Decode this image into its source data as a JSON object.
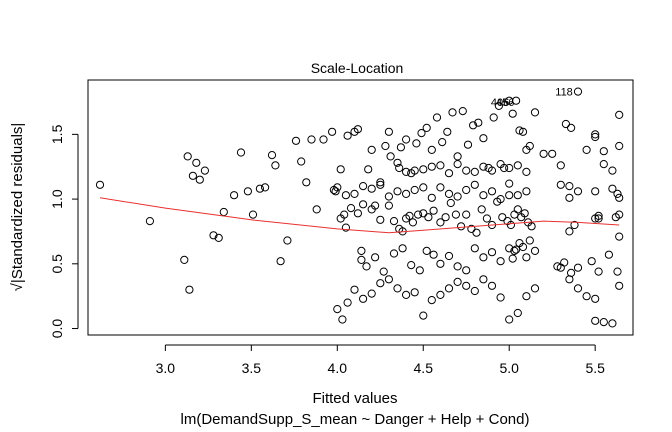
{
  "chart_data": {
    "type": "scatter",
    "title": "Scale-Location",
    "xlabel": "Fitted values",
    "sublabel": "lm(DemandSupp_S_mean ~ Danger + Help + Cond)",
    "ylabel": "√|Standardized residuals|",
    "xlim": [
      2.55,
      5.72
    ],
    "ylim": [
      -0.05,
      1.92
    ],
    "x_ticks": [
      "3.0",
      "3.5",
      "4.0",
      "4.5",
      "5.0",
      "5.5"
    ],
    "y_ticks": [
      "0.0",
      "0.5",
      "1.0",
      "1.5"
    ],
    "grid": false,
    "annotations": [
      {
        "text": "118",
        "x": 5.37,
        "y": 1.83
      },
      {
        "text": "456",
        "x": 5.03,
        "y": 1.75
      },
      {
        "text": "406",
        "x": 5.0,
        "y": 1.75
      }
    ],
    "smooth_line": {
      "color": "#e8312f",
      "x": [
        2.62,
        3.0,
        3.5,
        4.0,
        4.3,
        4.5,
        4.7,
        5.0,
        5.2,
        5.4,
        5.64
      ],
      "y": [
        1.01,
        0.93,
        0.84,
        0.77,
        0.74,
        0.76,
        0.78,
        0.81,
        0.83,
        0.82,
        0.8
      ]
    },
    "points": {
      "x": [
        2.62,
        2.91,
        3.13,
        3.16,
        3.18,
        3.2,
        3.23,
        3.28,
        3.31,
        3.34,
        3.11,
        3.14,
        3.4,
        3.44,
        3.48,
        3.51,
        3.55,
        3.58,
        3.62,
        3.64,
        3.67,
        3.71,
        3.76,
        3.79,
        3.82,
        3.85,
        3.88,
        3.92,
        3.97,
        3.99,
        4.02,
        4.04,
        4.06,
        4.08,
        4.1,
        4.12,
        4.14,
        4.18,
        4.2,
        4.22,
        4.25,
        4.28,
        4.3,
        4.31,
        4.35,
        4.37,
        4.4,
        4.43,
        4.46,
        4.49,
        4.52,
        4.55,
        4.58,
        4.61,
        4.64,
        4.67,
        4.7,
        4.73,
        4.76,
        4.79,
        4.82,
        4.85,
        4.88,
        4.91,
        4.94,
        4.97,
        5.0,
        5.02,
        5.04,
        5.06,
        5.08,
        5.1,
        5.12,
        5.15,
        5.2,
        5.25,
        5.3,
        5.33,
        5.36,
        5.4,
        5.45,
        5.5,
        5.55,
        5.6,
        5.64,
        4.02,
        4.05,
        4.12,
        4.15,
        4.2,
        4.25,
        4.3,
        4.33,
        4.36,
        4.38,
        4.4,
        4.42,
        4.44,
        4.47,
        4.5,
        4.53,
        4.56,
        4.6,
        4.63,
        4.66,
        4.69,
        4.72,
        4.75,
        4.78,
        4.81,
        4.84,
        4.87,
        4.9,
        4.93,
        4.96,
        4.99,
        5.01,
        5.03,
        5.05,
        5.07,
        5.09,
        5.11,
        5.13,
        5.35,
        5.38,
        5.5,
        5.52,
        5.62,
        5.64,
        4.14,
        4.17,
        4.22,
        4.27,
        4.33,
        4.38,
        4.43,
        4.48,
        4.52,
        4.56,
        4.6,
        4.65,
        4.7,
        4.75,
        4.8,
        4.85,
        4.9,
        4.95,
        5.0,
        5.02,
        5.04,
        5.06,
        5.08,
        5.1,
        5.12,
        5.15,
        5.28,
        5.32,
        5.36,
        5.4,
        5.48,
        5.52,
        5.58,
        5.63,
        4.0,
        4.03,
        4.06,
        4.1,
        4.15,
        4.2,
        4.25,
        4.3,
        4.35,
        4.4,
        4.45,
        4.5,
        4.55,
        4.6,
        4.65,
        4.7,
        4.75,
        4.8,
        4.85,
        4.9,
        4.95,
        5.0,
        5.05,
        5.1,
        5.15,
        5.3,
        5.35,
        5.4,
        5.45,
        5.5,
        5.55,
        5.6,
        5.64,
        3.98,
        4.0,
        4.05,
        4.1,
        4.15,
        4.2,
        4.25,
        4.3,
        4.35,
        4.4,
        4.45,
        4.5,
        4.55,
        4.6,
        4.65,
        4.7,
        4.75,
        4.8,
        4.85,
        4.9,
        4.95,
        5.0,
        5.05,
        5.1,
        5.3,
        5.35,
        5.5,
        5.63,
        4.36,
        4.4,
        4.45,
        4.5,
        4.55,
        4.6,
        4.65,
        4.7,
        4.75,
        4.8,
        4.85,
        4.9,
        4.95,
        5.0,
        5.05,
        5.1,
        5.35,
        5.4,
        5.5,
        5.55,
        5.6,
        5.64,
        5.64,
        5.64,
        5.0,
        5.03,
        5.5,
        5.52
      ],
      "y": [
        1.11,
        0.83,
        1.33,
        1.18,
        1.28,
        1.15,
        1.22,
        0.72,
        0.7,
        0.9,
        0.53,
        0.3,
        1.03,
        1.36,
        1.06,
        0.88,
        1.08,
        1.09,
        1.34,
        1.26,
        0.52,
        0.68,
        1.45,
        1.29,
        1.13,
        1.46,
        0.92,
        1.46,
        1.52,
        1.06,
        1.23,
        0.88,
        1.49,
        0.93,
        1.52,
        1.54,
        0.6,
        1.23,
        1.38,
        0.95,
        1.13,
        1.41,
        1.52,
        1.33,
        1.28,
        1.4,
        1.46,
        1.2,
        1.43,
        1.51,
        1.55,
        1.38,
        1.63,
        1.44,
        1.52,
        1.67,
        1.33,
        1.68,
        1.42,
        1.57,
        1.59,
        1.47,
        1.24,
        1.63,
        1.72,
        1.24,
        1.76,
        1.66,
        1.76,
        1.53,
        1.52,
        1.38,
        1.41,
        1.67,
        1.35,
        1.35,
        1.26,
        1.58,
        1.55,
        1.83,
        1.38,
        1.48,
        1.37,
        1.22,
        1.65,
        0.85,
        0.78,
        0.89,
        0.96,
        0.92,
        0.84,
        0.95,
        0.83,
        0.77,
        0.75,
        0.85,
        0.87,
        0.82,
        0.88,
        0.89,
        0.86,
        0.91,
        0.82,
        0.86,
        0.97,
        0.88,
        0.79,
        0.88,
        0.77,
        0.74,
        0.92,
        0.85,
        0.8,
        0.98,
        0.86,
        0.83,
        0.8,
        0.88,
        0.92,
        0.86,
        0.89,
        0.82,
        0.79,
        0.75,
        0.8,
        0.85,
        0.87,
        0.86,
        0.88,
        0.53,
        0.48,
        0.55,
        0.44,
        0.58,
        0.62,
        0.49,
        0.45,
        0.6,
        0.57,
        0.5,
        0.56,
        0.48,
        0.45,
        0.62,
        0.55,
        0.59,
        0.52,
        0.62,
        0.54,
        0.61,
        0.66,
        0.63,
        0.55,
        0.68,
        0.6,
        0.48,
        0.51,
        0.43,
        0.47,
        0.52,
        0.44,
        0.57,
        0.44,
        0.15,
        0.07,
        0.2,
        0.3,
        0.23,
        0.27,
        0.35,
        0.38,
        0.31,
        0.26,
        0.28,
        0.1,
        0.22,
        0.26,
        0.31,
        0.36,
        0.33,
        0.29,
        0.38,
        0.33,
        0.24,
        0.07,
        0.12,
        0.25,
        0.31,
        0.47,
        0.38,
        0.31,
        0.25,
        0.23,
        0.05,
        0.04,
        0.33,
        1.07,
        1.09,
        1.03,
        1.04,
        1.1,
        1.08,
        1.11,
        1.02,
        1.06,
        1.04,
        1.07,
        1.09,
        1.01,
        1.09,
        1.04,
        1.02,
        1.07,
        1.11,
        1.03,
        1.06,
        1.0,
        1.12,
        1.03,
        1.06,
        1.11,
        1.01,
        1.06,
        1.04,
        1.24,
        1.21,
        1.22,
        1.23,
        1.25,
        1.26,
        1.2,
        1.27,
        1.22,
        1.21,
        1.25,
        1.22,
        1.27,
        1.24,
        1.26,
        1.21,
        1.1,
        1.06,
        1.5,
        1.27,
        1.08,
        1.41,
        1.01,
        0.71,
        1.03,
        0.6,
        0.06,
        0.85
      ]
    }
  }
}
